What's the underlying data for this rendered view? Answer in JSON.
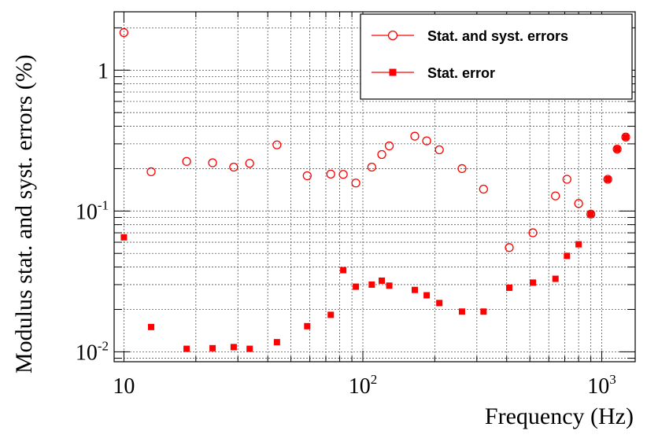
{
  "chart_data": {
    "type": "scatter",
    "xlabel": "Frequency (Hz)",
    "ylabel": "Modulus stat. and syst. errors (%)",
    "xscale": "log",
    "yscale": "log",
    "xlim": [
      9.1,
      1380
    ],
    "ylim": [
      0.0085,
      2.6
    ],
    "grid": true,
    "legend_position": "top-right",
    "x_ticks": [
      {
        "base": "10",
        "exp": ""
      },
      {
        "base": "10",
        "exp": "2"
      },
      {
        "base": "10",
        "exp": "3"
      }
    ],
    "y_ticks": [
      {
        "base": "10",
        "exp": "-2"
      },
      {
        "base": "10",
        "exp": "-1"
      },
      {
        "base": "1",
        "exp": ""
      }
    ],
    "series": [
      {
        "name": "Stat. and syst. errors",
        "marker": "open-circle",
        "color": "#ff0000",
        "points": [
          [
            10,
            1.85
          ],
          [
            13,
            0.19
          ],
          [
            18.3,
            0.225
          ],
          [
            23.5,
            0.22
          ],
          [
            28.8,
            0.205
          ],
          [
            33.6,
            0.218
          ],
          [
            43.7,
            0.295
          ],
          [
            58.5,
            0.178
          ],
          [
            73.4,
            0.183
          ],
          [
            82.8,
            0.182
          ],
          [
            93.5,
            0.158
          ],
          [
            109,
            0.205
          ],
          [
            120,
            0.252
          ],
          [
            129,
            0.29
          ],
          [
            165,
            0.34
          ],
          [
            185,
            0.315
          ],
          [
            209,
            0.272
          ],
          [
            260,
            0.2
          ],
          [
            320,
            0.143
          ],
          [
            410,
            0.055
          ],
          [
            515,
            0.07
          ],
          [
            640,
            0.128
          ],
          [
            715,
            0.168
          ],
          [
            800,
            0.113
          ],
          [
            900,
            0.095
          ],
          [
            1060,
            0.168
          ],
          [
            1160,
            0.275
          ],
          [
            1260,
            0.335
          ]
        ]
      },
      {
        "name": "Stat. error",
        "marker": "filled-square",
        "color": "#ff0000",
        "points": [
          [
            10,
            0.065
          ],
          [
            13,
            0.015
          ],
          [
            18.3,
            0.0105
          ],
          [
            23.5,
            0.0106
          ],
          [
            28.8,
            0.0108
          ],
          [
            33.6,
            0.0105
          ],
          [
            43.7,
            0.0117
          ],
          [
            58.5,
            0.0152
          ],
          [
            73.4,
            0.0183
          ],
          [
            82.8,
            0.038
          ],
          [
            93.5,
            0.029
          ],
          [
            109,
            0.03
          ],
          [
            120,
            0.032
          ],
          [
            129,
            0.0295
          ],
          [
            165,
            0.0275
          ],
          [
            185,
            0.0252
          ],
          [
            209,
            0.0222
          ],
          [
            260,
            0.0193
          ],
          [
            320,
            0.0193
          ],
          [
            410,
            0.0285
          ],
          [
            515,
            0.031
          ],
          [
            640,
            0.033
          ],
          [
            715,
            0.048
          ],
          [
            800,
            0.058
          ],
          [
            900,
            0.095
          ],
          [
            1060,
            0.168
          ],
          [
            1160,
            0.275
          ],
          [
            1260,
            0.335
          ]
        ]
      }
    ]
  }
}
